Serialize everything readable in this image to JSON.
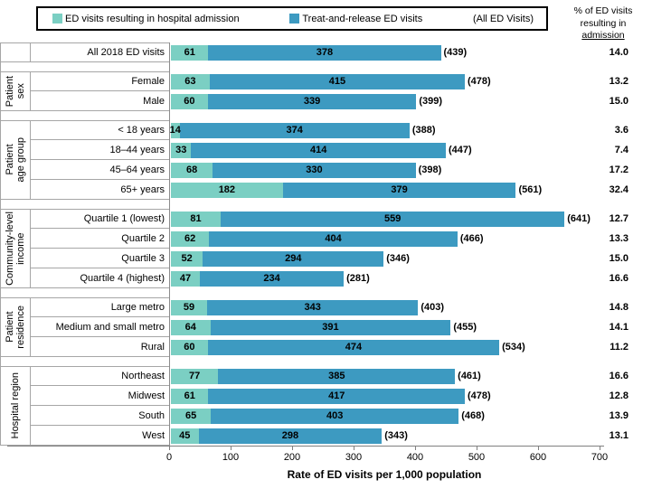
{
  "legend": {
    "items": [
      {
        "label": "ED visits resulting in hospital admission",
        "color": "#7BCFC3"
      },
      {
        "label": "Treat-and-release ED visits",
        "color": "#3D9AC1"
      }
    ],
    "note": "(All ED Visits)"
  },
  "pct_header": {
    "line1": "% of ED visits",
    "line2": "resulting in",
    "line3": "admission"
  },
  "chart_data": {
    "type": "bar",
    "orientation": "horizontal",
    "stacked": true,
    "title": "",
    "xlabel": "Rate of ED visits per 1,000 population",
    "ylabel": "",
    "xlim": [
      0,
      700
    ],
    "xticks": [
      0,
      100,
      200,
      300,
      400,
      500,
      600,
      700
    ],
    "grid": false,
    "legend_position": "top",
    "series_names": [
      "ED visits resulting in hospital admission",
      "Treat-and-release ED visits"
    ],
    "colors": {
      "admission": "#7BCFC3",
      "treat_release": "#3D9AC1"
    },
    "groups": [
      {
        "label": "",
        "rows": [
          {
            "category": "All 2018 ED visits",
            "admission": 61,
            "treat_release": 378,
            "total": "(439)",
            "pct_admission": "14.0"
          }
        ]
      },
      {
        "label": "Patient\nsex",
        "rows": [
          {
            "category": "Female",
            "admission": 63,
            "treat_release": 415,
            "total": "(478)",
            "pct_admission": "13.2"
          },
          {
            "category": "Male",
            "admission": 60,
            "treat_release": 339,
            "total": "(399)",
            "pct_admission": "15.0"
          }
        ]
      },
      {
        "label": "Patient\nage group",
        "rows": [
          {
            "category": "< 18 years",
            "admission": 14,
            "treat_release": 374,
            "total": "(388)",
            "pct_admission": "3.6"
          },
          {
            "category": "18–44 years",
            "admission": 33,
            "treat_release": 414,
            "total": "(447)",
            "pct_admission": "7.4"
          },
          {
            "category": "45–64 years",
            "admission": 68,
            "treat_release": 330,
            "total": "(398)",
            "pct_admission": "17.2"
          },
          {
            "category": "65+ years",
            "admission": 182,
            "treat_release": 379,
            "total": "(561)",
            "pct_admission": "32.4"
          }
        ]
      },
      {
        "label": "Community-level\nincome",
        "rows": [
          {
            "category": "Quartile 1 (lowest)",
            "admission": 81,
            "treat_release": 559,
            "total": "(641)",
            "pct_admission": "12.7"
          },
          {
            "category": "Quartile 2",
            "admission": 62,
            "treat_release": 404,
            "total": "(466)",
            "pct_admission": "13.3"
          },
          {
            "category": "Quartile 3",
            "admission": 52,
            "treat_release": 294,
            "total": "(346)",
            "pct_admission": "15.0"
          },
          {
            "category": "Quartile 4 (highest)",
            "admission": 47,
            "treat_release": 234,
            "total": "(281)",
            "pct_admission": "16.6"
          }
        ]
      },
      {
        "label": "Patient\nresidence",
        "rows": [
          {
            "category": "Large metro",
            "admission": 59,
            "treat_release": 343,
            "total": "(403)",
            "pct_admission": "14.8"
          },
          {
            "category": "Medium and small metro",
            "admission": 64,
            "treat_release": 391,
            "total": "(455)",
            "pct_admission": "14.1"
          },
          {
            "category": "Rural",
            "admission": 60,
            "treat_release": 474,
            "total": "(534)",
            "pct_admission": "11.2"
          }
        ]
      },
      {
        "label": "Hospital region",
        "rows": [
          {
            "category": "Northeast",
            "admission": 77,
            "treat_release": 385,
            "total": "(461)",
            "pct_admission": "16.6"
          },
          {
            "category": "Midwest",
            "admission": 61,
            "treat_release": 417,
            "total": "(478)",
            "pct_admission": "12.8"
          },
          {
            "category": "South",
            "admission": 65,
            "treat_release": 403,
            "total": "(468)",
            "pct_admission": "13.9"
          },
          {
            "category": "West",
            "admission": 45,
            "treat_release": 298,
            "total": "(343)",
            "pct_admission": "13.1"
          }
        ]
      }
    ]
  }
}
